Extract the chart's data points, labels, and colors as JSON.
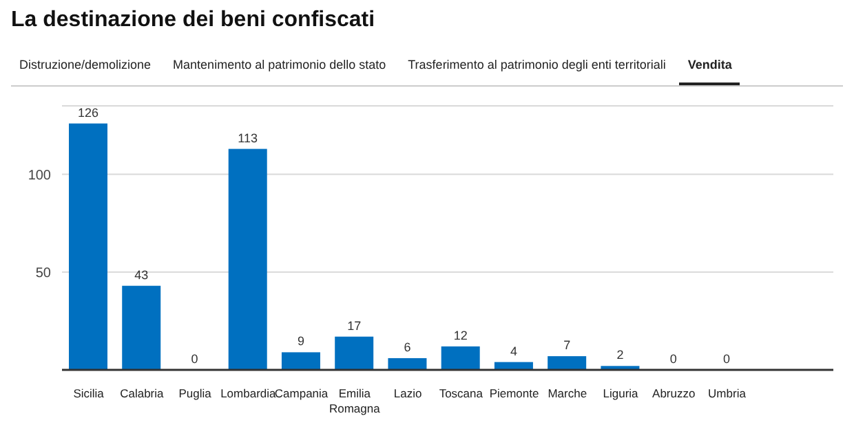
{
  "chart_data": {
    "type": "bar",
    "title": "La destinazione dei beni confiscati",
    "annotations": [
      "Distruzione/demolizione",
      "Mantenimento al patrimonio dello stato",
      "Trasferimento al patrimonio degli enti territoriali",
      "Vendita"
    ],
    "categories": [
      "Sicilia",
      "Calabria",
      "Puglia",
      "Lombardia",
      "Campania",
      "Emilia Romagna",
      "Lazio",
      "Toscana",
      "Piemonte",
      "Marche",
      "Liguria",
      "Abruzzo",
      "Umbria"
    ],
    "values": [
      126,
      43,
      0,
      113,
      9,
      17,
      6,
      12,
      4,
      7,
      2,
      0,
      0
    ],
    "color": "#0070c0",
    "ylim": [
      0,
      135
    ],
    "yticks": [
      {
        "value": 0,
        "label": null
      },
      50,
      100
    ],
    "grid": "y",
    "data_labels": true
  }
}
